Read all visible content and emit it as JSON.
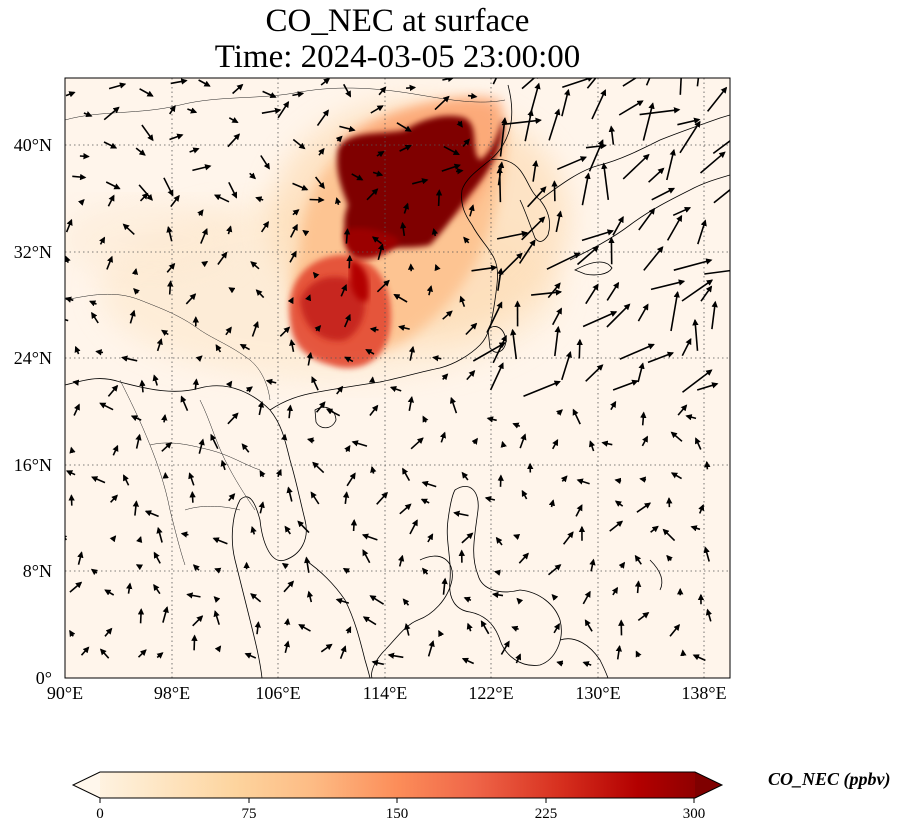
{
  "title": {
    "line1": "CO_NEC at surface",
    "line2": "Time: 2024-03-05 23:00:00"
  },
  "map": {
    "lon_range": [
      90,
      140
    ],
    "lat_range": [
      0,
      45
    ],
    "gridlines": "dotted",
    "lat_ticks": [
      "0°",
      "8°N",
      "16°N",
      "24°N",
      "32°N",
      "40°N"
    ],
    "lon_ticks": [
      "90°E",
      "98°E",
      "106°E",
      "114°E",
      "122°E",
      "130°E",
      "138°E"
    ],
    "layers": [
      "CO concentration field",
      "coastlines and borders",
      "surface wind vectors"
    ],
    "plume_color": "#7f0000",
    "background_color": "#fff5eb"
  },
  "colorbar": {
    "label": "CO_NEC (ppbv)",
    "ticks": [
      "0",
      "75",
      "150",
      "225",
      "300"
    ],
    "range": [
      0,
      300
    ],
    "extend": "both",
    "colormap": "OrRd",
    "colors": [
      "#fff7ec",
      "#fee8c8",
      "#fdd49e",
      "#fdbb84",
      "#fc8d59",
      "#ef6548",
      "#d7301f",
      "#b30000",
      "#7f0000"
    ]
  }
}
